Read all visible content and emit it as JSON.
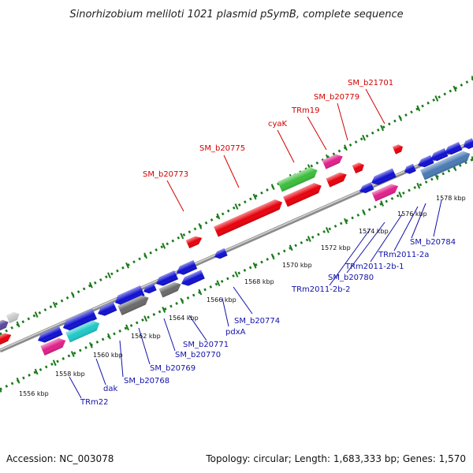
{
  "title": "Sinorhizobium meliloti 1021 plasmid pSymB, complete sequence",
  "footer": {
    "accession": "Accession: NC_003078",
    "summary": "Topology: circular; Length: 1,683,333 bp; Genes: 1,570"
  },
  "ticks": [
    "1556 kbp",
    "1558 kbp",
    "1560 kbp",
    "1562 kbp",
    "1564 kbp",
    "1566 kbp",
    "1568 kbp",
    "1570 kbp",
    "1572 kbp",
    "1574 kbp",
    "1576 kbp",
    "1578 kbp"
  ],
  "labels_top": [
    "SM_b20773",
    "SM_b20775",
    "cyaK",
    "TRm19",
    "SM_b20779",
    "SM_b21701"
  ],
  "labels_bottom": [
    "TRm22",
    "dak",
    "SM_b20768",
    "SM_b20769",
    "SM_b20770",
    "SM_b20771",
    "pdxA",
    "SM_b20774",
    "TRm2011-2b-2",
    "SM_b20780",
    "TRm2011-2b-1",
    "TRm2011-2a",
    "SM_b20784"
  ],
  "colors": {
    "red": "#e8000b",
    "blue": "#1010d0",
    "pink": "#e0208a",
    "green": "#3cbd3c",
    "teal": "#20c8c8",
    "gray": "#6a6a6a",
    "steel": "#4a7ab4",
    "purple": "#5a4a9a",
    "light": "#c8c8c8",
    "dots": "#1a7a1a",
    "backbone": "#8c8c8c"
  }
}
